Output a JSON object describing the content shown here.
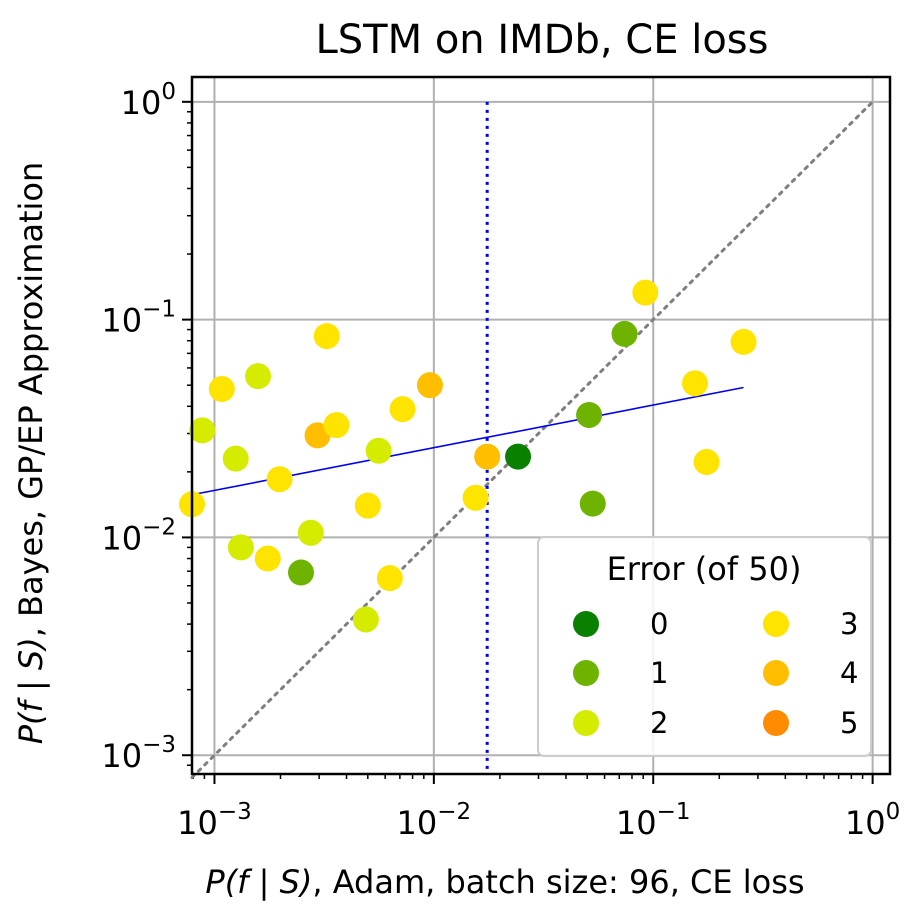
{
  "chart_data": {
    "type": "scatter",
    "title": "LSTM on IMDb, CE loss",
    "xlabel": {
      "italic_part": "P(f | S)",
      "rest": ", Adam, batch size: 96, CE loss"
    },
    "ylabel": {
      "italic_part": "P(f | S)",
      "rest": ", Bayes, GP/EP Approximation"
    },
    "x_scale": "log",
    "y_scale": "log",
    "xlim": [
      0.00079,
      1.2
    ],
    "ylim": [
      0.00082,
      1.3
    ],
    "x_ticks": [
      {
        "value": 0.001,
        "base": "10",
        "exp": "−3"
      },
      {
        "value": 0.01,
        "base": "10",
        "exp": "−2"
      },
      {
        "value": 0.1,
        "base": "10",
        "exp": "−1"
      },
      {
        "value": 1,
        "base": "10",
        "exp": "0"
      }
    ],
    "y_ticks": [
      {
        "value": 0.001,
        "base": "10",
        "exp": "−3"
      },
      {
        "value": 0.01,
        "base": "10",
        "exp": "−2"
      },
      {
        "value": 0.1,
        "base": "10",
        "exp": "−1"
      },
      {
        "value": 1,
        "base": "10",
        "exp": "0"
      }
    ],
    "grid": true,
    "error_colors": {
      "0": "#0a8000",
      "1": "#6db300",
      "2": "#d5ec00",
      "3": "#ffe400",
      "4": "#ffbf00",
      "5": "#ff8c00"
    },
    "points": [
      {
        "x": 0.00079,
        "y": 0.0142,
        "error": 3
      },
      {
        "x": 0.00088,
        "y": 0.031,
        "error": 2
      },
      {
        "x": 0.00108,
        "y": 0.048,
        "error": 3
      },
      {
        "x": 0.00125,
        "y": 0.023,
        "error": 2
      },
      {
        "x": 0.00132,
        "y": 0.009,
        "error": 2
      },
      {
        "x": 0.00158,
        "y": 0.055,
        "error": 2
      },
      {
        "x": 0.00175,
        "y": 0.008,
        "error": 3
      },
      {
        "x": 0.00198,
        "y": 0.0185,
        "error": 3
      },
      {
        "x": 0.00248,
        "y": 0.0069,
        "error": 1
      },
      {
        "x": 0.00275,
        "y": 0.0105,
        "error": 2
      },
      {
        "x": 0.00295,
        "y": 0.0294,
        "error": 4
      },
      {
        "x": 0.00325,
        "y": 0.084,
        "error": 3
      },
      {
        "x": 0.0036,
        "y": 0.0328,
        "error": 3
      },
      {
        "x": 0.0049,
        "y": 0.0042,
        "error": 2
      },
      {
        "x": 0.005,
        "y": 0.014,
        "error": 3
      },
      {
        "x": 0.0056,
        "y": 0.025,
        "error": 2
      },
      {
        "x": 0.0063,
        "y": 0.0065,
        "error": 3
      },
      {
        "x": 0.0072,
        "y": 0.0388,
        "error": 3
      },
      {
        "x": 0.0096,
        "y": 0.05,
        "error": 4
      },
      {
        "x": 0.0155,
        "y": 0.0152,
        "error": 3
      },
      {
        "x": 0.0175,
        "y": 0.0235,
        "error": 4
      },
      {
        "x": 0.0242,
        "y": 0.0235,
        "error": 0
      },
      {
        "x": 0.051,
        "y": 0.0365,
        "error": 1
      },
      {
        "x": 0.053,
        "y": 0.0143,
        "error": 1
      },
      {
        "x": 0.074,
        "y": 0.086,
        "error": 1
      },
      {
        "x": 0.092,
        "y": 0.133,
        "error": 3
      },
      {
        "x": 0.155,
        "y": 0.051,
        "error": 3
      },
      {
        "x": 0.175,
        "y": 0.0222,
        "error": 3
      },
      {
        "x": 0.258,
        "y": 0.079,
        "error": 3
      }
    ],
    "fit_line": {
      "x": [
        0.00079,
        0.258
      ],
      "y": [
        0.0157,
        0.0488
      ],
      "color": "#0000ee"
    },
    "identity_line": {
      "x": [
        0.00079,
        1
      ],
      "y": [
        0.00079,
        1
      ],
      "color": "#7f7f7f"
    },
    "vertical_line": {
      "x": 0.0175,
      "color": "#0000ee"
    },
    "legend": {
      "title": "Error (of 50)",
      "position": "lower-right",
      "entries": [
        {
          "label": "0",
          "error": 0
        },
        {
          "label": "1",
          "error": 1
        },
        {
          "label": "2",
          "error": 2
        },
        {
          "label": "3",
          "error": 3
        },
        {
          "label": "4",
          "error": 4
        },
        {
          "label": "5",
          "error": 5
        }
      ]
    }
  }
}
